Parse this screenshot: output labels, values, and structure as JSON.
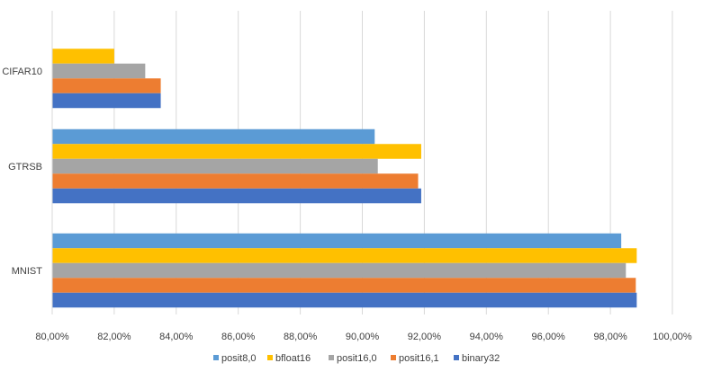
{
  "chart_data": {
    "type": "bar",
    "orientation": "horizontal",
    "categories": [
      "MNIST",
      "GTRSB",
      "CIFAR10"
    ],
    "series": [
      {
        "name": "binary32",
        "color": "#4472C4",
        "values": [
          98.85,
          91.9,
          83.5
        ]
      },
      {
        "name": "posit16,1",
        "color": "#ED7D31",
        "values": [
          98.82,
          91.8,
          83.5
        ]
      },
      {
        "name": "posit16,0",
        "color": "#A5A5A5",
        "values": [
          98.5,
          90.5,
          83.0
        ]
      },
      {
        "name": "bfloat16",
        "color": "#FFC000",
        "values": [
          98.85,
          91.9,
          82.0
        ]
      },
      {
        "name": "posit8,0",
        "color": "#5B9BD5",
        "values": [
          98.35,
          90.4,
          null
        ]
      }
    ],
    "legend_order": [
      "posit8,0",
      "bfloat16",
      "posit16,0",
      "posit16,1",
      "binary32"
    ],
    "xlim": [
      80,
      100
    ],
    "xticks": [
      80,
      82,
      84,
      86,
      88,
      90,
      92,
      94,
      96,
      98,
      100
    ],
    "xtick_labels": [
      "80,00%",
      "82,00%",
      "84,00%",
      "86,00%",
      "88,00%",
      "90,00%",
      "92,00%",
      "94,00%",
      "96,00%",
      "98,00%",
      "100,00%"
    ],
    "grid": true,
    "legend_position": "bottom",
    "title": "",
    "xlabel": "",
    "ylabel": ""
  }
}
